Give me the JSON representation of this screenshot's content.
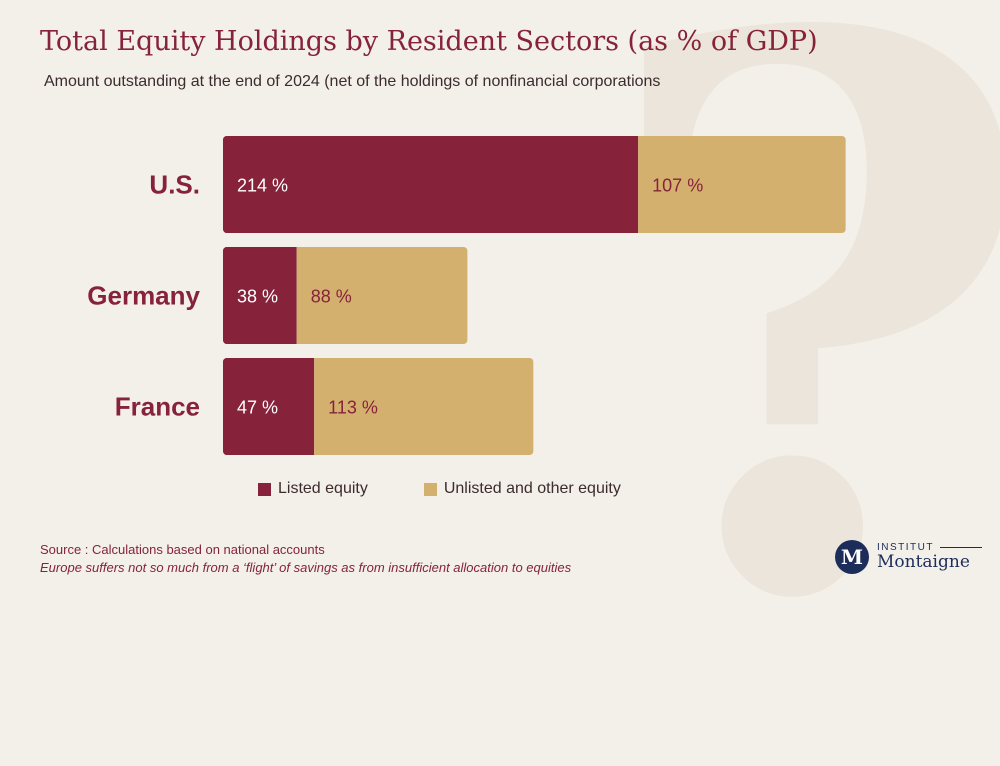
{
  "decoration": {
    "glyph": "?"
  },
  "header": {
    "title": "Total Equity Holdings by Resident Sectors (as % of GDP)",
    "subtitle": "Amount outstanding at the end of 2024 (net of the holdings of nonfinancial corporations"
  },
  "colors": {
    "listed": "#86233a",
    "unlisted": "#d4b06f",
    "text_accent": "#86233a"
  },
  "chart_data": {
    "type": "bar",
    "orientation": "horizontal",
    "stacked": true,
    "categories": [
      "U.S.",
      "Germany",
      "France"
    ],
    "series": [
      {
        "name": "Listed equity",
        "values": [
          214,
          38,
          47
        ],
        "labels": [
          "214 %",
          "38 %",
          "47 %"
        ]
      },
      {
        "name": "Unlisted and other equity",
        "values": [
          107,
          88,
          113
        ],
        "labels": [
          "107 %",
          "88 %",
          "113 %"
        ]
      }
    ],
    "xlim": [
      0,
      330
    ],
    "grid": false,
    "legend": "bottom"
  },
  "legend": {
    "listed_label": "Listed equity",
    "unlisted_label": "Unlisted and other equity"
  },
  "footer": {
    "source": "Source : Calculations based on national accounts",
    "note": "Europe suffers not so much from a ‘flight’ of savings as from insufficient allocation to equities"
  },
  "logo": {
    "initial": "M",
    "top": "INSTITUT",
    "name": "Montaigne"
  }
}
